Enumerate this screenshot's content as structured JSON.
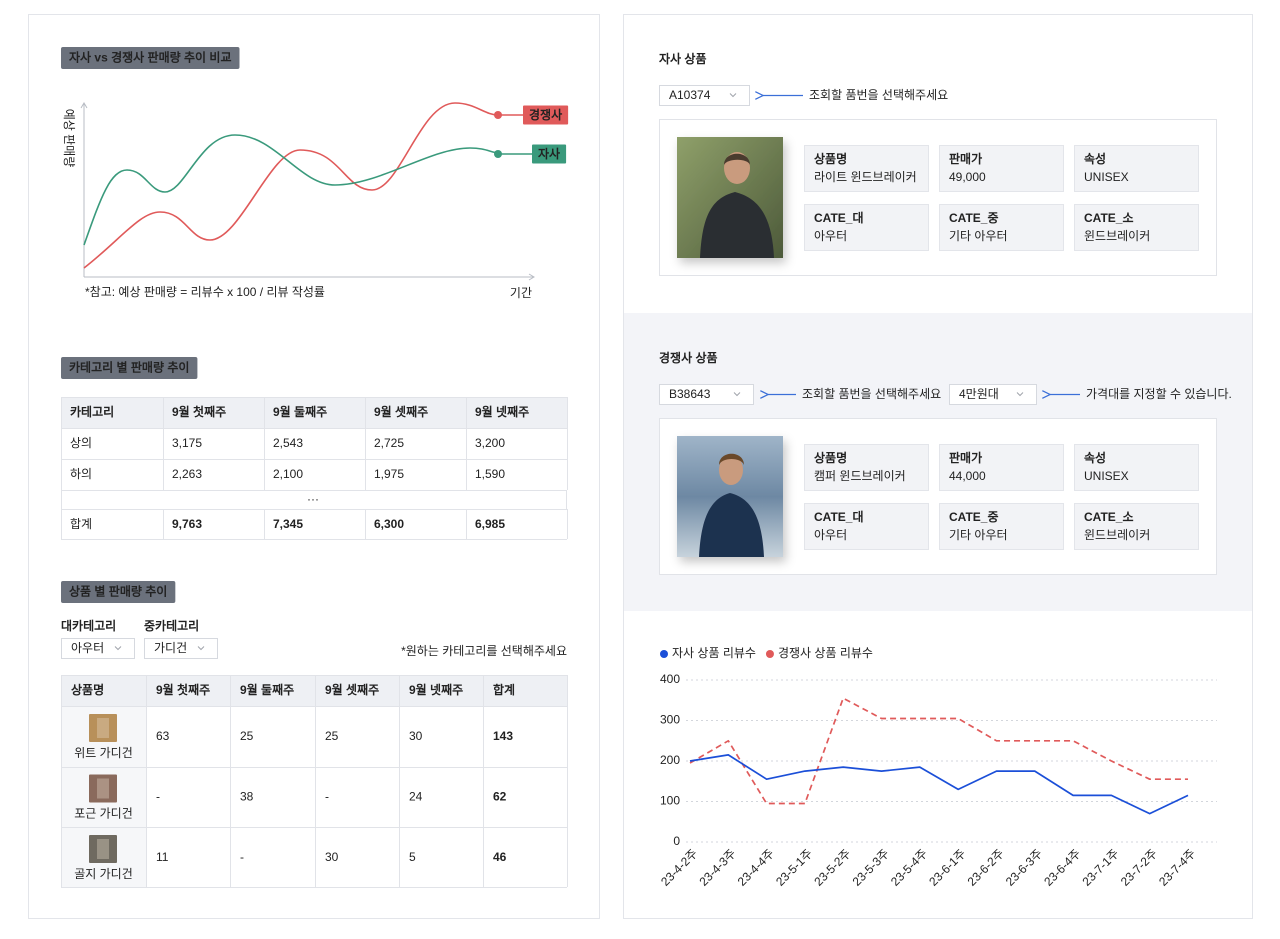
{
  "trend_chart": {
    "title": "자사 vs 경쟁사 판매량 추이 비교",
    "y_label": "예상 판매량",
    "x_label": "기간",
    "note": "*참고: 예상 판매량 = 리뷰수 x 100 / 리뷰 작성률",
    "series": [
      {
        "name": "경쟁사",
        "color": "#e05a5a"
      },
      {
        "name": "자사",
        "color": "#3a9a7c"
      }
    ]
  },
  "category_table": {
    "title": "카테고리 별 판매량 추이",
    "columns": [
      "카테고리",
      "9월 첫째주",
      "9월 둘째주",
      "9월 셋째주",
      "9월 넷째주"
    ],
    "rows": [
      [
        "상의",
        "3,175",
        "2,543",
        "2,725",
        "3,200"
      ],
      [
        "하의",
        "2,263",
        "2,100",
        "1,975",
        "1,590"
      ]
    ],
    "ellipsis": "···",
    "total": [
      "합계",
      "9,763",
      "7,345",
      "6,300",
      "6,985"
    ]
  },
  "product_table": {
    "title": "상품 별 판매량 추이",
    "filters": [
      {
        "label": "대카테고리",
        "value": "아우터"
      },
      {
        "label": "중카테고리",
        "value": "가디건"
      }
    ],
    "hint": "*원하는 카테고리를 선택해주세요",
    "columns": [
      "상품명",
      "9월 첫째주",
      "9월 둘째주",
      "9월 셋째주",
      "9월 넷째주",
      "합계"
    ],
    "rows": [
      {
        "name": "위트 가디건",
        "cells": [
          "63",
          "25",
          "25",
          "30",
          "143"
        ]
      },
      {
        "name": "포근 가디건",
        "cells": [
          "-",
          "38",
          "-",
          "24",
          "62"
        ]
      },
      {
        "name": "골지 가디건",
        "cells": [
          "11",
          "-",
          "30",
          "5",
          "46"
        ]
      }
    ]
  },
  "own_product": {
    "title": "자사 상품",
    "code": "A10374",
    "hint": "조회할 품번을 선택해주세요",
    "fields": [
      {
        "label": "상품명",
        "value": "라이트 윈드브레이커"
      },
      {
        "label": "판매가",
        "value": "49,000"
      },
      {
        "label": "속성",
        "value": "UNISEX"
      },
      {
        "label": "CATE_대",
        "value": "아우터"
      },
      {
        "label": "CATE_중",
        "value": "기타 아우터"
      },
      {
        "label": "CATE_소",
        "value": "윈드브레이커"
      }
    ]
  },
  "competitor_product": {
    "title": "경쟁사 상품",
    "code": "B38643",
    "hint": "조회할 품번을 선택해주세요",
    "price": "4만원대",
    "price_hint": "가격대를 지정할 수 있습니다.",
    "fields": [
      {
        "label": "상품명",
        "value": "캠퍼 윈드브레이커"
      },
      {
        "label": "판매가",
        "value": "44,000"
      },
      {
        "label": "속성",
        "value": "UNISEX"
      },
      {
        "label": "CATE_대",
        "value": "아우터"
      },
      {
        "label": "CATE_중",
        "value": "기타 아우터"
      },
      {
        "label": "CATE_소",
        "value": "윈드브레이커"
      }
    ]
  },
  "chart_data": {
    "type": "line",
    "categories": [
      "23-4-2주",
      "23-4-3주",
      "23-4-4주",
      "23-5-1주",
      "23-5-2주",
      "23-5-3주",
      "23-5-4주",
      "23-6-1주",
      "23-6-2주",
      "23-6-3주",
      "23-6-4주",
      "23-7-1주",
      "23-7-2주",
      "23-7-4주"
    ],
    "series": [
      {
        "name": "자사 상품 리뷰수",
        "color": "#1b4fd8",
        "dashed": false,
        "values": [
          200,
          215,
          155,
          175,
          185,
          175,
          185,
          130,
          175,
          175,
          115,
          115,
          70,
          115
        ]
      },
      {
        "name": "경쟁사 상품 리뷰수",
        "color": "#e05a5a",
        "dashed": true,
        "values": [
          195,
          250,
          95,
          95,
          355,
          305,
          305,
          305,
          250,
          250,
          250,
          200,
          155,
          155
        ]
      }
    ],
    "ylim": [
      0,
      400
    ],
    "yticks": [
      0,
      100,
      200,
      300,
      400
    ],
    "grid": true
  }
}
